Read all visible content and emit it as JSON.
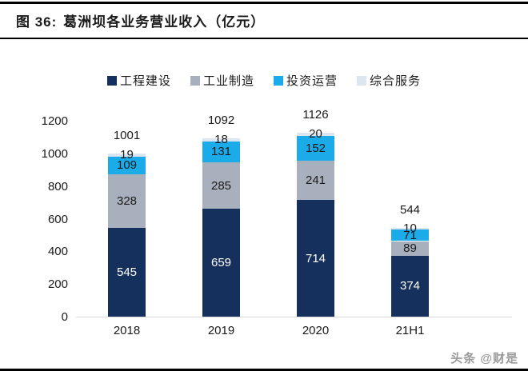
{
  "figure": {
    "title_prefix": "图 36:",
    "title": "葛洲坝各业务营业收入（亿元）"
  },
  "watermark": "头条 @财是",
  "colors": {
    "navy": "#16305d",
    "gray": "#a7b0bc",
    "blue": "#1babe8",
    "light": "#dce6f0",
    "axis_line": "#d9d9d9",
    "text": "#1a1a1a"
  },
  "chart_data": {
    "type": "bar",
    "stacked": true,
    "title": "葛洲坝各业务营业收入（亿元）",
    "categories": [
      "2018",
      "2019",
      "2020",
      "21H1"
    ],
    "series": [
      {
        "name": "工程建设",
        "color_key": "navy",
        "label_color": "#ffffff",
        "values": [
          545,
          659,
          714,
          374
        ]
      },
      {
        "name": "工业制造",
        "color_key": "gray",
        "label_color": "#1a1a1a",
        "values": [
          328,
          285,
          241,
          89
        ]
      },
      {
        "name": "投资运营",
        "color_key": "blue",
        "label_color": "#1a1a1a",
        "values": [
          109,
          131,
          152,
          71
        ]
      },
      {
        "name": "综合服务",
        "color_key": "light",
        "label_color": "#1a1a1a",
        "values": [
          19,
          18,
          20,
          10
        ]
      }
    ],
    "totals": [
      1001,
      1092,
      1126,
      544
    ],
    "y_ticks": [
      0,
      200,
      400,
      600,
      800,
      1000,
      1200
    ],
    "ylim": [
      0,
      1200
    ],
    "xlabel": "",
    "ylabel": "",
    "grid": false,
    "legend_position": "top"
  }
}
